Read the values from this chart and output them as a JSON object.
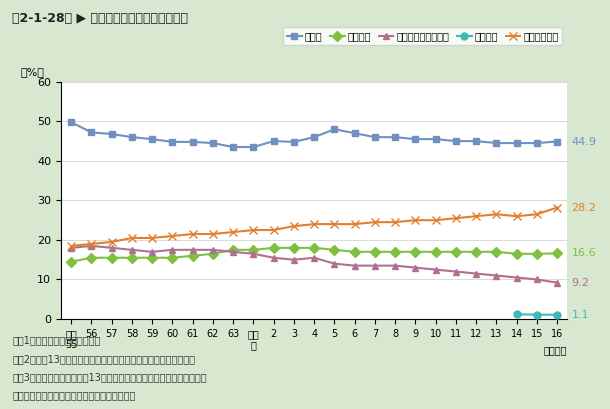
{
  "title": "第2-1-28図 ▶ 研究費の費目別構成比の推移",
  "ylabel": "（%）",
  "xlabel_suffix": "（年度）",
  "background_color": "#d8e8d0",
  "plot_background": "#ffffff",
  "ylim": [
    0,
    60
  ],
  "yticks": [
    0,
    10,
    20,
    30,
    40,
    50,
    60
  ],
  "x_labels": [
    "昭和\n55",
    "56",
    "57",
    "58",
    "59",
    "60",
    "61",
    "62",
    "63",
    "平成\n元",
    "2",
    "3",
    "4",
    "5",
    "6",
    "7",
    "8",
    "9",
    "10",
    "11",
    "12",
    "13",
    "14",
    "15",
    "16"
  ],
  "series": [
    {
      "name": "人件費",
      "color": "#7090c0",
      "marker": "s",
      "markersize": 5,
      "linewidth": 1.5,
      "values": [
        49.8,
        47.2,
        46.8,
        46.0,
        45.5,
        44.8,
        44.8,
        44.5,
        43.5,
        43.5,
        45.0,
        44.8,
        46.0,
        48.0,
        47.0,
        46.0,
        46.0,
        45.5,
        45.5,
        45.0,
        45.0,
        44.5,
        44.5,
        44.5,
        44.9
      ],
      "end_label": "44.9"
    },
    {
      "name": "原材料費",
      "color": "#80c040",
      "marker": "D",
      "markersize": 5,
      "linewidth": 1.5,
      "values": [
        14.5,
        15.5,
        15.5,
        15.5,
        15.5,
        15.5,
        16.0,
        16.5,
        17.5,
        17.5,
        18.0,
        18.0,
        18.0,
        17.5,
        17.0,
        17.0,
        17.0,
        17.0,
        17.0,
        17.0,
        17.0,
        17.0,
        16.5,
        16.5,
        16.6
      ],
      "end_label": "16.6"
    },
    {
      "name": "有形固定資産購入費",
      "color": "#b07090",
      "marker": "^",
      "markersize": 5,
      "linewidth": 1.5,
      "values": [
        18.0,
        18.5,
        18.0,
        17.5,
        17.0,
        17.5,
        17.5,
        17.5,
        17.0,
        16.5,
        15.5,
        15.0,
        15.5,
        14.0,
        13.5,
        13.5,
        13.5,
        13.0,
        12.5,
        12.0,
        11.5,
        11.0,
        10.5,
        10.0,
        9.2
      ],
      "end_label": "9.2"
    },
    {
      "name": "リース料",
      "color": "#40b8b8",
      "marker": "o",
      "markersize": 5,
      "linewidth": 1.5,
      "values": [
        null,
        null,
        null,
        null,
        null,
        null,
        null,
        null,
        null,
        null,
        null,
        null,
        null,
        null,
        null,
        null,
        null,
        null,
        null,
        null,
        null,
        null,
        1.2,
        1.1,
        1.1
      ],
      "end_label": "1.1"
    },
    {
      "name": "その他の経費",
      "color": "#e08030",
      "marker": "x",
      "markersize": 6,
      "linewidth": 1.5,
      "values": [
        18.5,
        19.0,
        19.5,
        20.5,
        20.5,
        21.0,
        21.5,
        21.5,
        22.0,
        22.5,
        22.5,
        23.5,
        24.0,
        24.0,
        24.0,
        24.5,
        24.5,
        25.0,
        25.0,
        25.5,
        26.0,
        26.5,
        26.0,
        26.5,
        28.2
      ],
      "end_label": "28.2"
    }
  ],
  "notes": [
    "注）1．人文・社会科学を含む。",
    "　　2．平成13年度からリース料がその他の経費から分離された。",
    "　　3．平成８年度及び平成13年度に調査対象産業が追加されている。",
    "資料：総務省統計局「科学技術研究調査報告」"
  ],
  "legend_labels": [
    "人件費",
    "原材料費",
    "有形固定資産購入費",
    "リース料",
    "その他の経費"
  ]
}
